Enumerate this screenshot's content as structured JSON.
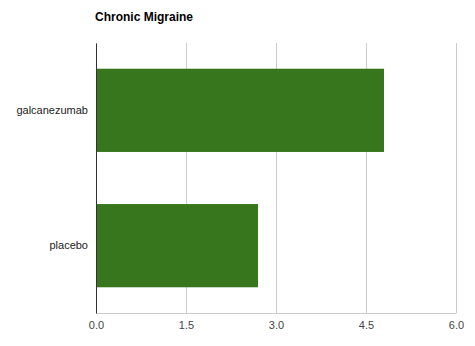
{
  "chart_data": {
    "type": "bar",
    "title": "Chronic Migraine",
    "orientation": "horizontal",
    "categories": [
      "galcanezumab",
      "placebo"
    ],
    "values": [
      4.8,
      2.7
    ],
    "color": "#38761d",
    "xlim": [
      0,
      6
    ],
    "xticks": [
      {
        "value": 0,
        "label": "0.0"
      },
      1.5,
      {
        "value": 3,
        "label": "3.0"
      },
      4.5,
      {
        "value": 6,
        "label": "6.0"
      }
    ],
    "grid": true
  }
}
